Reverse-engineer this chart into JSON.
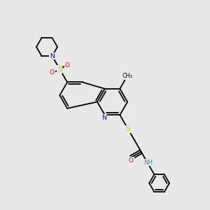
{
  "background_color": "#e8e8e8",
  "colors": {
    "C": "#000000",
    "N": "#0000ff",
    "S": "#cccc00",
    "O": "#ff0000",
    "H": "#4a9090",
    "bg": "#e8e8e8"
  },
  "bond_lw": 1.3,
  "font_size": 6.5
}
